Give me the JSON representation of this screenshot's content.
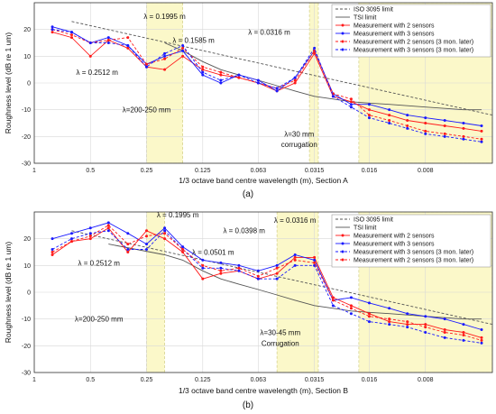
{
  "chart_data": [
    {
      "type": "line",
      "panel_caption": "(a)",
      "xlabel": "1/3 octave band centre wavelength (m), Section A",
      "ylabel": "Roughness level (dB re 1 um)",
      "ylim": [
        -30,
        30
      ],
      "yticks": [
        -30,
        -20,
        -10,
        0,
        10,
        20
      ],
      "xticks": [
        "1",
        "0.5",
        "0.25",
        "0.125",
        "0.063",
        "0.0315",
        "0.016",
        "0.008"
      ],
      "grid": true,
      "legend_position": "top-right",
      "shaded_bands": [
        {
          "from": 0.25,
          "to": 0.16
        },
        {
          "from": 0.0335,
          "to": 0.03
        },
        {
          "from": 0.0182,
          "to": 0.0035
        }
      ],
      "series": [
        {
          "name": "ISO 3095 limit",
          "color": "#555555",
          "style": "dashed",
          "marker": "none",
          "x": [
            0.63,
            0.0035
          ],
          "y": [
            23,
            -12
          ]
        },
        {
          "name": "TSI limit",
          "color": "#555555",
          "style": "solid",
          "marker": "none",
          "x": [
            0.2,
            0.16,
            0.125,
            0.1,
            0.08,
            0.063,
            0.05,
            0.04,
            0.0315,
            0.025,
            0.02,
            0.016,
            0.0125,
            0.01,
            0.008,
            0.0063,
            0.005,
            0.004
          ],
          "y": [
            15,
            12,
            8,
            5,
            3,
            1,
            -1,
            -3,
            -5,
            -6,
            -7,
            -7.5,
            -8,
            -8.5,
            -9,
            -9.5,
            -10,
            -10
          ]
        },
        {
          "name": "Measurement with 2 sensors",
          "color": "#ff1a1a",
          "style": "solid",
          "marker": "dot",
          "x": [
            0.8,
            0.63,
            0.5,
            0.4,
            0.315,
            0.25,
            0.2,
            0.16,
            0.125,
            0.1,
            0.08,
            0.063,
            0.05,
            0.04,
            0.0315,
            0.025,
            0.02,
            0.016,
            0.0125,
            0.01,
            0.008,
            0.0063,
            0.005,
            0.004
          ],
          "y": [
            19,
            17,
            10,
            16,
            13,
            6,
            5,
            10,
            5,
            3,
            2,
            0,
            -3,
            0,
            11,
            -5,
            -7,
            -10,
            -12,
            -14,
            -15,
            -16,
            -17,
            -18
          ]
        },
        {
          "name": "Measurement with 3 sensors",
          "color": "#1a1aff",
          "style": "solid",
          "marker": "dot",
          "x": [
            0.8,
            0.63,
            0.5,
            0.4,
            0.315,
            0.25,
            0.2,
            0.16,
            0.125,
            0.1,
            0.08,
            0.063,
            0.05,
            0.04,
            0.0315,
            0.025,
            0.02,
            0.016,
            0.0125,
            0.01,
            0.008,
            0.0063,
            0.005,
            0.004
          ],
          "y": [
            21,
            19,
            15,
            17,
            14,
            7,
            10,
            12,
            3,
            0,
            3,
            1,
            -3,
            2,
            12,
            -4,
            -8,
            -8,
            -10,
            -12,
            -13,
            -14,
            -15,
            -16
          ]
        },
        {
          "name": "Measurement with 2 sensors (3 mon. later)",
          "color": "#ff1a1a",
          "style": "dashed",
          "marker": "dot",
          "x": [
            0.8,
            0.63,
            0.5,
            0.4,
            0.315,
            0.25,
            0.2,
            0.16,
            0.125,
            0.1,
            0.08,
            0.063,
            0.05,
            0.04,
            0.0315,
            0.025,
            0.02,
            0.016,
            0.0125,
            0.01,
            0.008,
            0.0063,
            0.005,
            0.004
          ],
          "y": [
            20,
            18,
            15,
            16,
            17,
            7,
            9,
            13,
            6,
            4,
            2,
            0,
            -2,
            1,
            12,
            -4,
            -6,
            -12,
            -14,
            -16,
            -18,
            -19,
            -20,
            -21
          ]
        },
        {
          "name": "Measurement with 3 sensors (3 mon. later)",
          "color": "#1a1aff",
          "style": "dashed",
          "marker": "dot",
          "x": [
            0.8,
            0.63,
            0.5,
            0.4,
            0.315,
            0.25,
            0.2,
            0.16,
            0.125,
            0.1,
            0.08,
            0.063,
            0.05,
            0.04,
            0.0315,
            0.025,
            0.02,
            0.016,
            0.0125,
            0.01,
            0.008,
            0.0063,
            0.005,
            0.004
          ],
          "y": [
            20,
            19,
            15,
            15,
            14,
            6,
            11,
            14,
            4,
            1,
            3,
            0,
            -2,
            2,
            13,
            -5,
            -9,
            -13,
            -15,
            -17,
            -19,
            -20,
            -21,
            -22
          ]
        }
      ],
      "annotations": [
        {
          "text": "λ = 0.1995 m",
          "x": 0.2,
          "y": 24
        },
        {
          "text": "λ = 0.1585 m",
          "x": 0.14,
          "y": 15
        },
        {
          "text": "λ = 0.2512 m",
          "x": 0.46,
          "y": 3
        },
        {
          "text": "λ = 0.0316 m",
          "x": 0.055,
          "y": 18
        },
        {
          "text": "λ=200-250 mm",
          "x": 0.25,
          "y": -11
        },
        {
          "text": "λ=30 mm",
          "x": 0.038,
          "y": -20
        },
        {
          "text": "corrugation",
          "x": 0.038,
          "y": -24
        }
      ]
    },
    {
      "type": "line",
      "panel_caption": "(b)",
      "xlabel": "1/3 octave band centre wavelength (m), Section B",
      "ylabel": "Roughness level (dB re 1 um)",
      "ylim": [
        -30,
        30
      ],
      "yticks": [
        -30,
        -20,
        -10,
        0,
        10,
        20
      ],
      "xticks": [
        "1",
        "0.5",
        "0.25",
        "0.125",
        "0.063",
        "0.0315",
        "0.016",
        "0.008"
      ],
      "grid": true,
      "legend_position": "top-right",
      "shaded_bands": [
        {
          "from": 0.25,
          "to": 0.2
        },
        {
          "from": 0.05,
          "to": 0.03
        },
        {
          "from": 0.0182,
          "to": 0.0035
        }
      ],
      "series": [
        {
          "name": "ISO 3095 limit",
          "color": "#555555",
          "style": "dashed",
          "marker": "none",
          "x": [
            0.63,
            0.0035
          ],
          "y": [
            23,
            -12
          ]
        },
        {
          "name": "TSI limit",
          "color": "#555555",
          "style": "solid",
          "marker": "none",
          "x": [
            0.4,
            0.2,
            0.16,
            0.125,
            0.1,
            0.08,
            0.063,
            0.05,
            0.04,
            0.0315,
            0.025,
            0.02,
            0.016,
            0.0125,
            0.01,
            0.008,
            0.0063,
            0.005,
            0.004
          ],
          "y": [
            18,
            14,
            12,
            8,
            5,
            3,
            1,
            -1,
            -3,
            -5,
            -6,
            -7,
            -7.5,
            -8,
            -8.5,
            -9,
            -9.5,
            -10,
            -10
          ]
        },
        {
          "name": "Measurement with 2 sensors",
          "color": "#ff1a1a",
          "style": "solid",
          "marker": "dot",
          "x": [
            0.8,
            0.63,
            0.5,
            0.4,
            0.315,
            0.25,
            0.2,
            0.16,
            0.125,
            0.1,
            0.08,
            0.063,
            0.05,
            0.04,
            0.0315,
            0.025,
            0.02,
            0.016,
            0.0125,
            0.01,
            0.008,
            0.0063,
            0.005,
            0.004
          ],
          "y": [
            14,
            19,
            20,
            24,
            15,
            23,
            20,
            15,
            5,
            7,
            8,
            5,
            7,
            13,
            13,
            -2,
            -5,
            -8,
            -11,
            -12,
            -12,
            -14,
            -15,
            -17
          ]
        },
        {
          "name": "Measurement with 3 sensors",
          "color": "#1a1aff",
          "style": "solid",
          "marker": "dot",
          "x": [
            0.8,
            0.63,
            0.5,
            0.4,
            0.315,
            0.25,
            0.2,
            0.16,
            0.125,
            0.1,
            0.08,
            0.063,
            0.05,
            0.04,
            0.0315,
            0.025,
            0.02,
            0.016,
            0.0125,
            0.01,
            0.008,
            0.0063,
            0.005,
            0.004
          ],
          "y": [
            20,
            22,
            24,
            26,
            22,
            18,
            24,
            17,
            12,
            11,
            10,
            8,
            10,
            14,
            12,
            -3,
            -2,
            -4,
            -6,
            -8,
            -9,
            -10,
            -12,
            -14
          ]
        },
        {
          "name": "Measurement with 3 sensors (3 mon. later)",
          "color": "#1a1aff",
          "style": "dashed",
          "marker": "dot",
          "x": [
            0.8,
            0.63,
            0.5,
            0.4,
            0.315,
            0.25,
            0.2,
            0.16,
            0.125,
            0.1,
            0.08,
            0.063,
            0.05,
            0.04,
            0.0315,
            0.025,
            0.02,
            0.016,
            0.0125,
            0.01,
            0.008,
            0.0063,
            0.005,
            0.004
          ],
          "y": [
            16,
            20,
            22,
            23,
            16,
            16,
            23,
            16,
            9,
            9,
            8,
            5,
            5,
            10,
            10,
            -5,
            -8,
            -11,
            -12,
            -13,
            -15,
            -17,
            -18,
            -19
          ]
        },
        {
          "name": "Measurement with 2 sensors (3 mon. later)",
          "color": "#ff1a1a",
          "style": "dashed",
          "marker": "dot",
          "x": [
            0.8,
            0.63,
            0.5,
            0.4,
            0.315,
            0.25,
            0.2,
            0.16,
            0.125,
            0.1,
            0.08,
            0.063,
            0.05,
            0.04,
            0.0315,
            0.025,
            0.02,
            0.016,
            0.0125,
            0.01,
            0.008,
            0.0063,
            0.005,
            0.004
          ],
          "y": [
            15,
            19,
            21,
            25,
            18,
            21,
            22,
            16,
            10,
            8,
            9,
            6,
            9,
            12,
            11,
            -3,
            -6,
            -9,
            -10,
            -11,
            -13,
            -15,
            -16,
            -18
          ]
        }
      ],
      "annotations": [
        {
          "text": "λ = 0.1995 m",
          "x": 0.17,
          "y": 28
        },
        {
          "text": "λ = 0.0316 m",
          "x": 0.04,
          "y": 26
        },
        {
          "text": "λ = 0.0398 m",
          "x": 0.075,
          "y": 22
        },
        {
          "text": "λ = 0.0501 m",
          "x": 0.11,
          "y": 14
        },
        {
          "text": "λ = 0.2512 m",
          "x": 0.45,
          "y": 10
        },
        {
          "text": "λ=200-250 mm",
          "x": 0.45,
          "y": -11
        },
        {
          "text": "λ=30-45 mm",
          "x": 0.048,
          "y": -16
        },
        {
          "text": "Corrugation",
          "x": 0.048,
          "y": -20
        }
      ]
    }
  ]
}
